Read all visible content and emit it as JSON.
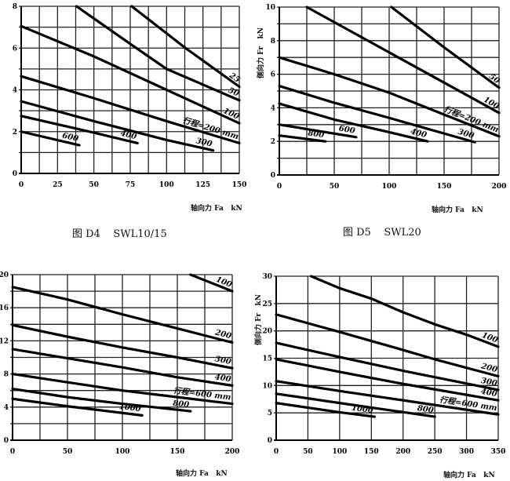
{
  "chart_data": [
    {
      "type": "line",
      "caption": "图 D4    SWL10/15",
      "xlabel": "轴向力 Fa   kN",
      "ylabel": "",
      "xlim": [
        0,
        150
      ],
      "ylim": [
        0,
        8
      ],
      "xticks": [
        0,
        25,
        50,
        75,
        100,
        125,
        150
      ],
      "yticks": [
        0,
        2,
        4,
        6,
        8
      ],
      "grid": {
        "x_step": 12.5,
        "y_step": 1
      },
      "series": [
        {
          "name": "25",
          "points": [
            [
              76,
              8
            ],
            [
              113,
              6.0
            ],
            [
              150,
              4.15
            ]
          ]
        },
        {
          "name": "50",
          "points": [
            [
              38,
              8
            ],
            [
              75,
              6.2
            ],
            [
              100,
              5.0
            ],
            [
              150,
              3.5
            ]
          ]
        },
        {
          "name": "100",
          "points": [
            [
              0,
              7.05
            ],
            [
              50,
              5.6
            ],
            [
              100,
              4.0
            ],
            [
              150,
              2.4
            ]
          ]
        },
        {
          "name": "行程=200 mm",
          "points": [
            [
              0,
              4.65
            ],
            [
              50,
              3.6
            ],
            [
              100,
              2.5
            ],
            [
              150,
              1.45
            ]
          ]
        },
        {
          "name": "300",
          "points": [
            [
              0,
              3.45
            ],
            [
              50,
              2.5
            ],
            [
              100,
              1.6
            ],
            [
              132,
              1.1
            ]
          ]
        },
        {
          "name": "400",
          "points": [
            [
              0,
              2.75
            ],
            [
              50,
              1.95
            ],
            [
              80,
              1.45
            ]
          ]
        },
        {
          "name": "600",
          "points": [
            [
              0,
              2.0
            ],
            [
              40,
              1.35
            ]
          ]
        }
      ]
    },
    {
      "type": "line",
      "caption": "图 D5    SWL20",
      "xlabel": "轴向力 Fa   kN",
      "ylabel": "侧向力 Fr   kN",
      "xlim": [
        0,
        200
      ],
      "ylim": [
        0,
        10
      ],
      "xticks": [
        0,
        50,
        100,
        150,
        200
      ],
      "yticks": [
        0,
        2,
        4,
        6,
        8,
        10
      ],
      "grid": {
        "x_step": 25,
        "y_step": 1
      },
      "series": [
        {
          "name": "50",
          "points": [
            [
              102,
              10
            ],
            [
              150,
              7.6
            ],
            [
              200,
              5.2
            ]
          ]
        },
        {
          "name": "100",
          "points": [
            [
              25,
              10
            ],
            [
              100,
              7.3
            ],
            [
              150,
              5.5
            ],
            [
              200,
              3.7
            ]
          ]
        },
        {
          "name": "行程=200 mm",
          "points": [
            [
              0,
              7.0
            ],
            [
              50,
              6.0
            ],
            [
              100,
              4.9
            ],
            [
              150,
              3.6
            ],
            [
              200,
              2.3
            ]
          ]
        },
        {
          "name": "300",
          "points": [
            [
              0,
              5.3
            ],
            [
              50,
              4.3
            ],
            [
              100,
              3.4
            ],
            [
              178,
              1.95
            ]
          ]
        },
        {
          "name": "400",
          "points": [
            [
              0,
              4.25
            ],
            [
              50,
              3.3
            ],
            [
              100,
              2.55
            ],
            [
              135,
              2.0
            ]
          ]
        },
        {
          "name": "600",
          "points": [
            [
              0,
              3.0
            ],
            [
              70,
              2.25
            ]
          ]
        },
        {
          "name": "800",
          "points": [
            [
              0,
              2.35
            ],
            [
              42,
              2.0
            ]
          ]
        }
      ]
    },
    {
      "type": "line",
      "caption": "",
      "xlabel": "轴向力 Fa   kN",
      "ylabel": "",
      "xlim": [
        0,
        200
      ],
      "ylim": [
        0,
        20
      ],
      "xticks": [
        0,
        50,
        100,
        150,
        200
      ],
      "yticks": [
        0,
        4,
        8,
        12,
        16,
        20
      ],
      "grid": {
        "x_step": 25,
        "y_step": 2
      },
      "series": [
        {
          "name": "100",
          "points": [
            [
              162,
              20
            ],
            [
              200,
              18
            ]
          ]
        },
        {
          "name": "200",
          "points": [
            [
              0,
              18.5
            ],
            [
              50,
              17
            ],
            [
              100,
              15.2
            ],
            [
              150,
              13.5
            ],
            [
              200,
              11.8
            ]
          ]
        },
        {
          "name": "300",
          "points": [
            [
              0,
              13.9
            ],
            [
              50,
              12.5
            ],
            [
              100,
              11.2
            ],
            [
              150,
              10
            ],
            [
              200,
              8.7
            ]
          ]
        },
        {
          "name": "400",
          "points": [
            [
              0,
              11
            ],
            [
              50,
              9.9
            ],
            [
              100,
              8.8
            ],
            [
              150,
              7.6
            ],
            [
              200,
              6.6
            ]
          ]
        },
        {
          "name": "行程=600 mm",
          "points": [
            [
              0,
              8
            ],
            [
              50,
              7
            ],
            [
              100,
              6
            ],
            [
              150,
              5.2
            ],
            [
              200,
              4.4
            ]
          ]
        },
        {
          "name": "800",
          "points": [
            [
              0,
              6.2
            ],
            [
              50,
              5.2
            ],
            [
              100,
              4.4
            ],
            [
              162,
              3.5
            ]
          ]
        },
        {
          "name": "1000",
          "points": [
            [
              0,
              5
            ],
            [
              50,
              4.1
            ],
            [
              118,
              3.0
            ]
          ]
        }
      ]
    },
    {
      "type": "line",
      "caption": "",
      "xlabel": "轴向力 Fa   kN",
      "ylabel": "侧向力 Fr   kN",
      "xlim": [
        0,
        350
      ],
      "ylim": [
        0,
        30
      ],
      "xticks": [
        0,
        50,
        100,
        150,
        200,
        250,
        300,
        350
      ],
      "yticks": [
        0,
        5,
        10,
        15,
        20,
        25,
        30
      ],
      "grid": {
        "x_step": 50,
        "y_step": 5
      },
      "series": [
        {
          "name": "100",
          "points": [
            [
              55,
              30
            ],
            [
              100,
              27.8
            ],
            [
              150,
              25.9
            ],
            [
              200,
              23.4
            ],
            [
              250,
              21.2
            ],
            [
              300,
              19.3
            ],
            [
              350,
              17.1
            ]
          ]
        },
        {
          "name": "200",
          "points": [
            [
              0,
              23
            ],
            [
              100,
              19.8
            ],
            [
              200,
              16.5
            ],
            [
              250,
              14.8
            ],
            [
              350,
              11.7
            ]
          ]
        },
        {
          "name": "300",
          "points": [
            [
              0,
              17.8
            ],
            [
              100,
              15.2
            ],
            [
              200,
              12.7
            ],
            [
              350,
              9.2
            ]
          ]
        },
        {
          "name": "400",
          "points": [
            [
              0,
              14.8
            ],
            [
              100,
              12.5
            ],
            [
              200,
              10.3
            ],
            [
              350,
              7.3
            ]
          ]
        },
        {
          "name": "行程=600 mm",
          "points": [
            [
              0,
              10.8
            ],
            [
              100,
              9
            ],
            [
              200,
              7.3
            ],
            [
              350,
              4.7
            ]
          ]
        },
        {
          "name": "800",
          "points": [
            [
              0,
              8.5
            ],
            [
              100,
              6.8
            ],
            [
              250,
              4.3
            ]
          ]
        },
        {
          "name": "1000",
          "points": [
            [
              0,
              6.8
            ],
            [
              100,
              5.1
            ],
            [
              155,
              4.3
            ]
          ]
        }
      ]
    }
  ]
}
